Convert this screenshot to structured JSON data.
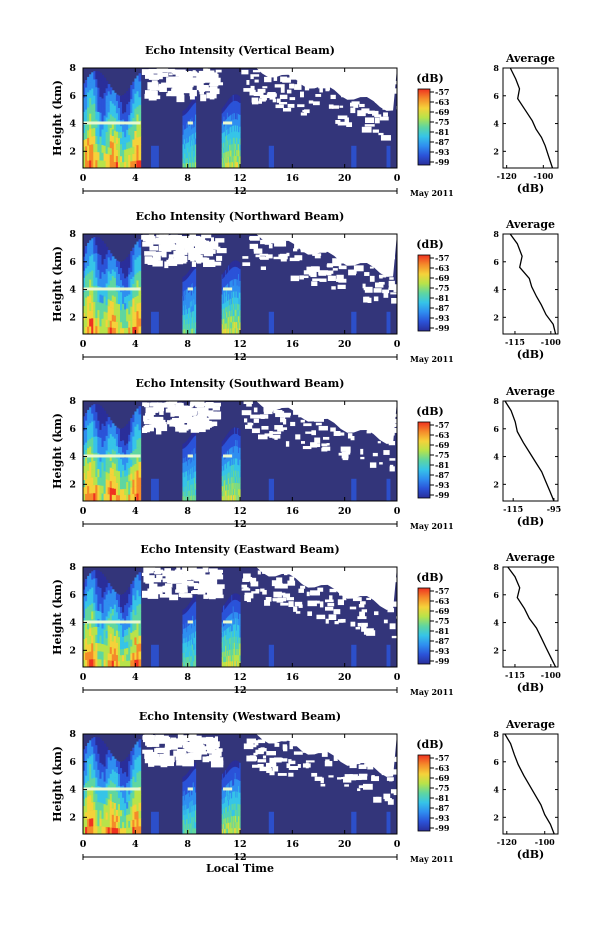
{
  "figure": {
    "xlabel": "Local Time",
    "date_label": "May 2011",
    "date_day": "12",
    "colorbar_unit": "(dB)",
    "colorbar_ticks": [
      "-57",
      "-63",
      "-69",
      "-75",
      "-81",
      "-87",
      "-93",
      "-99"
    ],
    "colorbar_colors": [
      "#ef3220",
      "#f58a2a",
      "#f5d23a",
      "#b8e34a",
      "#5fd6a0",
      "#36c4e8",
      "#2f8ef0",
      "#2b53d8",
      "#2a2e9a"
    ],
    "heatmap_background": "#33357a",
    "time_ticks": [
      "0",
      "4",
      "8",
      "12",
      "16",
      "20",
      "0"
    ],
    "height_ticks": [
      "2",
      "4",
      "6",
      "8"
    ],
    "height_label": "Height (km)",
    "average_title": "Average",
    "average_xlabel": "(dB)"
  },
  "chart_data": [
    {
      "type": "heatmap",
      "title": "Echo Intensity (Vertical Beam)",
      "xlabel": "",
      "ylabel": "Height (km)",
      "x_range_hours": [
        0,
        24
      ],
      "y_range_km": [
        0.8,
        8
      ],
      "colorbar_range_db": [
        -99,
        -57
      ]
    },
    {
      "type": "line",
      "title": "Average",
      "xlabel": "(dB)",
      "ylabel": "",
      "xticks": [
        "-120",
        "-100"
      ],
      "xlim": [
        -122,
        -92
      ],
      "ylim": [
        0.8,
        8
      ],
      "x": [
        -118,
        -115,
        -113,
        -114,
        -110,
        -106,
        -104,
        -101,
        -99,
        -97,
        -95
      ],
      "y": [
        8.0,
        7.2,
        6.5,
        5.8,
        5.0,
        4.2,
        3.6,
        3.0,
        2.4,
        1.6,
        0.8
      ]
    },
    {
      "type": "heatmap",
      "title": "Echo Intensity (Northward Beam)",
      "xlabel": "",
      "ylabel": "Height (km)",
      "x_range_hours": [
        0,
        24
      ],
      "y_range_km": [
        0.8,
        8
      ],
      "colorbar_range_db": [
        -99,
        -57
      ]
    },
    {
      "type": "line",
      "title": "Average",
      "xlabel": "(dB)",
      "ylabel": "",
      "xticks": [
        "-115",
        "-100"
      ],
      "xlim": [
        -120,
        -97
      ],
      "ylim": [
        0.8,
        8
      ],
      "x": [
        -117,
        -114,
        -112,
        -113,
        -109,
        -108,
        -106,
        -104,
        -102,
        -99,
        -98
      ],
      "y": [
        8.0,
        7.3,
        6.4,
        5.6,
        4.8,
        4.2,
        3.5,
        2.9,
        2.2,
        1.5,
        0.8
      ]
    },
    {
      "type": "heatmap",
      "title": "Echo Intensity (Southward Beam)",
      "xlabel": "",
      "ylabel": "Height (km)",
      "x_range_hours": [
        0,
        24
      ],
      "y_range_km": [
        0.8,
        8
      ],
      "colorbar_range_db": [
        -99,
        -57
      ]
    },
    {
      "type": "line",
      "title": "Average",
      "xlabel": "(dB)",
      "ylabel": "",
      "xticks": [
        "-115",
        "-95"
      ],
      "xlim": [
        -120,
        -93
      ],
      "ylim": [
        0.8,
        8
      ],
      "x": [
        -119,
        -116,
        -114,
        -113,
        -110,
        -107,
        -104,
        -101,
        -99,
        -97,
        -95
      ],
      "y": [
        8.0,
        7.3,
        6.5,
        5.8,
        5.0,
        4.3,
        3.6,
        2.9,
        2.2,
        1.5,
        0.8
      ]
    },
    {
      "type": "heatmap",
      "title": "Echo Intensity (Eastward Beam)",
      "xlabel": "",
      "ylabel": "Height (km)",
      "x_range_hours": [
        0,
        24
      ],
      "y_range_km": [
        0.8,
        8
      ],
      "colorbar_range_db": [
        -99,
        -57
      ]
    },
    {
      "type": "line",
      "title": "Average",
      "xlabel": "(dB)",
      "ylabel": "",
      "xticks": [
        "-115",
        "-100"
      ],
      "xlim": [
        -120,
        -97
      ],
      "ylim": [
        0.8,
        8
      ],
      "x": [
        -118,
        -115,
        -113,
        -114,
        -111,
        -109,
        -106,
        -104,
        -102,
        -100,
        -98
      ],
      "y": [
        8.0,
        7.3,
        6.5,
        5.8,
        5.0,
        4.3,
        3.6,
        2.9,
        2.2,
        1.5,
        0.8
      ]
    },
    {
      "type": "heatmap",
      "title": "Echo Intensity (Westward Beam)",
      "xlabel": "Local Time",
      "ylabel": "Height (km)",
      "x_range_hours": [
        0,
        24
      ],
      "y_range_km": [
        0.8,
        8
      ],
      "colorbar_range_db": [
        -99,
        -57
      ]
    },
    {
      "type": "line",
      "title": "Average",
      "xlabel": "(dB)",
      "ylabel": "",
      "xticks": [
        "-120",
        "-100"
      ],
      "xlim": [
        -122,
        -93
      ],
      "ylim": [
        0.8,
        8
      ],
      "x": [
        -121,
        -118,
        -116,
        -114,
        -111,
        -108,
        -105,
        -102,
        -100,
        -97,
        -95
      ],
      "y": [
        8.0,
        7.3,
        6.5,
        5.8,
        5.0,
        4.3,
        3.6,
        2.9,
        2.2,
        1.5,
        0.8
      ]
    }
  ]
}
